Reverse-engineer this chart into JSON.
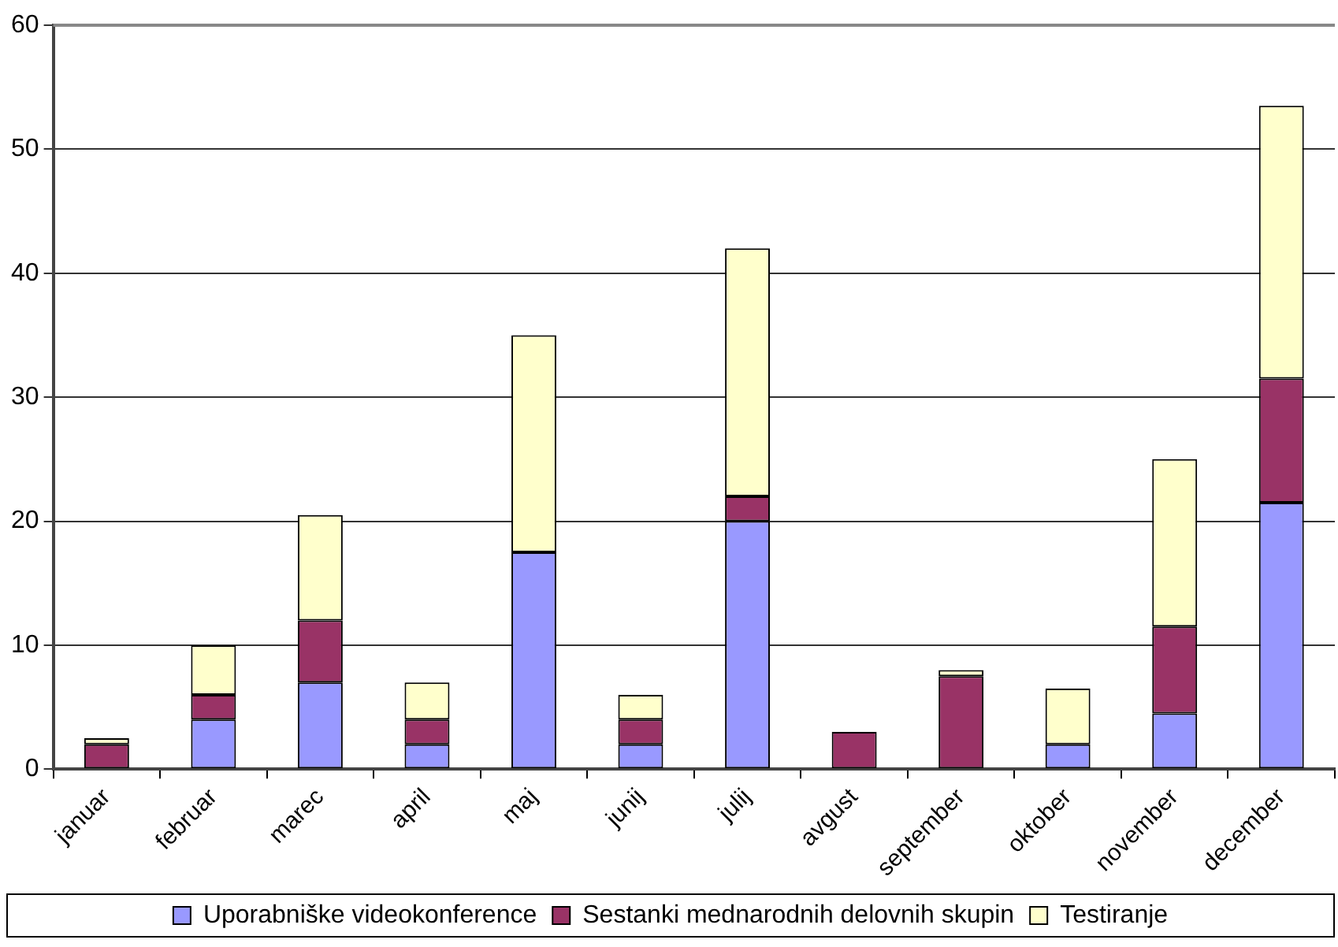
{
  "chart_data": {
    "type": "bar",
    "stacked": true,
    "categories": [
      "januar",
      "februar",
      "marec",
      "april",
      "maj",
      "junij",
      "julij",
      "avgust",
      "september",
      "oktober",
      "november",
      "december"
    ],
    "series": [
      {
        "name": "Uporabniške videokonference",
        "color": "#9999ff",
        "values": [
          0,
          4,
          7,
          2,
          17.5,
          2,
          20,
          0,
          0,
          2,
          4.5,
          21.5
        ]
      },
      {
        "name": "Sestanki mednarodnih delovnih skupin",
        "color": "#993366",
        "values": [
          2,
          2,
          5,
          2,
          0,
          2,
          2,
          3,
          7.5,
          0,
          7,
          10
        ]
      },
      {
        "name": "Testiranje",
        "color": "#ffffcc",
        "values": [
          0.5,
          4,
          8.5,
          3,
          17.5,
          2,
          20,
          0,
          0.5,
          4.5,
          13.5,
          22
        ]
      }
    ],
    "ylim": [
      0,
      60
    ],
    "yticks": [
      0,
      10,
      20,
      30,
      40,
      50,
      60
    ],
    "grid": "y",
    "legend": "bottom"
  }
}
